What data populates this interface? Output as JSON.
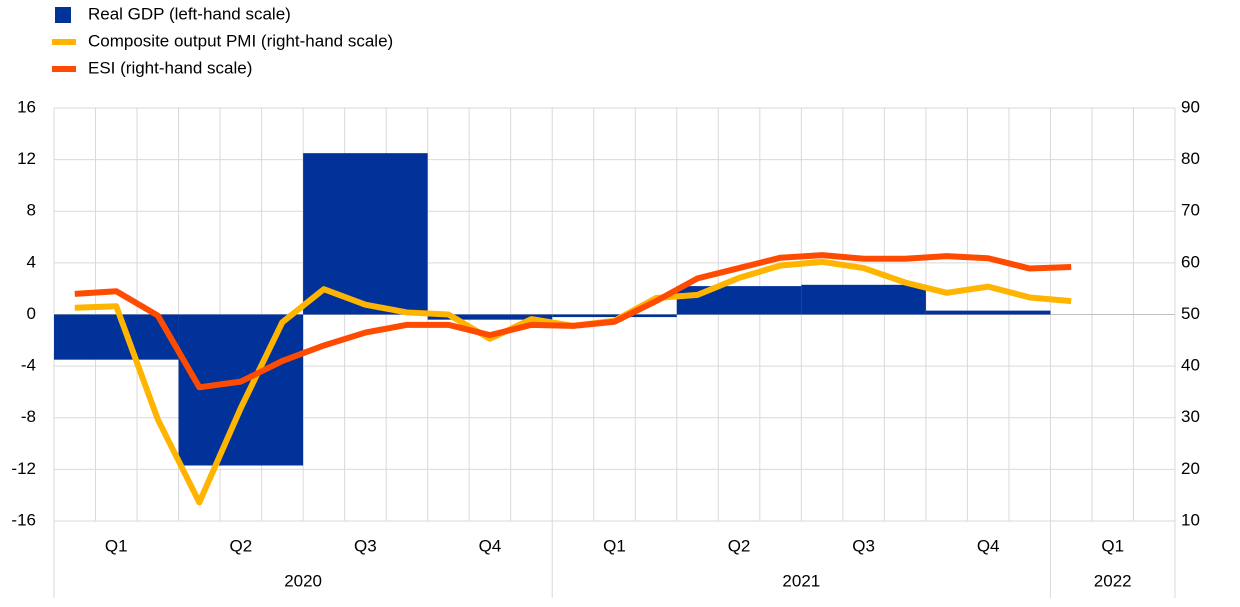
{
  "chart_data": {
    "type": "combo",
    "quarters": [
      "Q1",
      "Q2",
      "Q3",
      "Q4",
      "Q1",
      "Q2",
      "Q3",
      "Q4",
      "Q1"
    ],
    "years": [
      "2020",
      "2021",
      "2022"
    ],
    "year_quarters": [
      4,
      4,
      1
    ],
    "months_per_quarter": 3,
    "series": [
      {
        "name": "Real GDP (left-hand scale)",
        "type": "bar",
        "color": "#003299",
        "axis": "y",
        "values": [
          -3.5,
          -11.7,
          12.5,
          -0.4,
          -0.2,
          2.2,
          2.3,
          0.3,
          null
        ]
      },
      {
        "name": "Composite output PMI (right-hand scale)",
        "type": "line",
        "color": "#ffb400",
        "axis": "y2",
        "values": [
          51.3,
          51.6,
          29.7,
          13.6,
          31.9,
          48.5,
          54.9,
          51.9,
          50.4,
          50.0,
          45.3,
          49.1,
          47.8,
          48.8,
          53.2,
          53.8,
          57.1,
          59.5,
          60.2,
          59.0,
          56.2,
          54.2,
          55.4,
          53.3,
          52.6,
          null,
          null
        ]
      },
      {
        "name": "ESI (right-hand scale)",
        "type": "line",
        "color": "#ff4b00",
        "axis": "y2",
        "values": [
          54.0,
          54.5,
          49.8,
          35.9,
          37.0,
          41.0,
          44.0,
          46.5,
          48.0,
          48.0,
          46.0,
          48.0,
          47.8,
          48.6,
          52.6,
          57.0,
          59.0,
          61.0,
          61.5,
          60.8,
          60.8,
          61.3,
          60.9,
          58.9,
          59.2,
          null,
          null
        ]
      }
    ],
    "ylim": [
      -16,
      16
    ],
    "yticks": [
      -16,
      -12,
      -8,
      -4,
      0,
      4,
      8,
      12,
      16
    ],
    "y2lim": [
      10,
      90
    ],
    "y2ticks": [
      10,
      20,
      30,
      40,
      50,
      60,
      70,
      80,
      90
    ],
    "grid": true
  }
}
